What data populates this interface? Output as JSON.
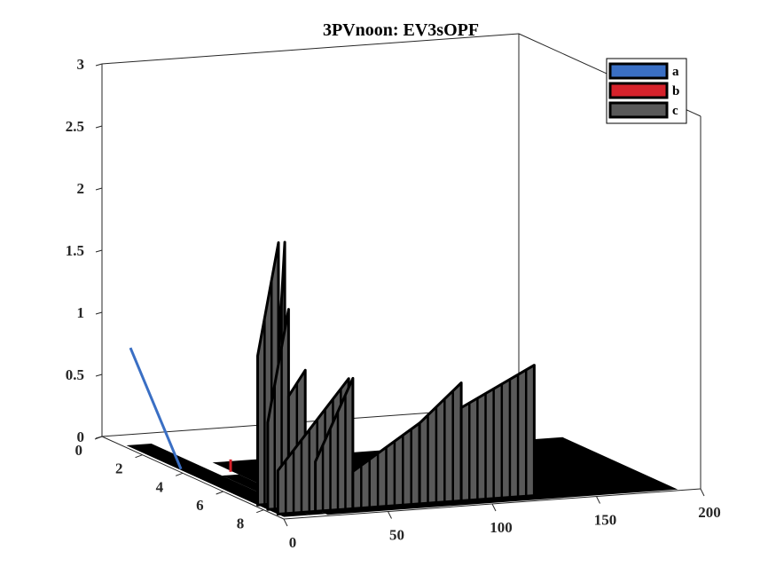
{
  "chart_data": {
    "type": "bar3d",
    "title": "3PVnoon: EV3sOPF",
    "xlabel": "",
    "ylabel": "",
    "zlabel": "",
    "x_ticks": [
      "0",
      "50",
      "100",
      "150",
      "200"
    ],
    "y_ticks": [
      "0",
      "2",
      "4",
      "6",
      "8"
    ],
    "z_ticks": [
      "0",
      "0.5",
      "1",
      "1.5",
      "2",
      "2.5",
      "3"
    ],
    "xlim": [
      0,
      200
    ],
    "ylim": [
      0,
      9
    ],
    "zlim": [
      0,
      3
    ],
    "legend_position": "top-right",
    "legend": [
      {
        "label": "a",
        "color": "#3a6fc4"
      },
      {
        "label": "b",
        "color": "#d6222b"
      },
      {
        "label": "c",
        "color": "#595959"
      }
    ],
    "walls": [
      {
        "y": 7.5,
        "x_start": 2,
        "x_end": 12,
        "z_start": 1.2,
        "z_end": 2.1
      },
      {
        "y": 7.5,
        "x_start": 12,
        "x_end": 15,
        "z_start": 1.2,
        "z_end": 2.1
      },
      {
        "y": 8.0,
        "x_start": 2,
        "x_end": 12,
        "z_start": 0.7,
        "z_end": 1.6
      },
      {
        "y": 8.0,
        "x_start": 12,
        "x_end": 20,
        "z_start": 0.9,
        "z_end": 1.1
      },
      {
        "y": 8.5,
        "x_start": 2,
        "x_end": 36,
        "z_start": 0.35,
        "z_end": 1.05
      },
      {
        "y": 8.5,
        "x_start": 20,
        "x_end": 38,
        "z_start": 0.4,
        "z_end": 1.05
      },
      {
        "y": 8.5,
        "x_start": 38,
        "x_end": 70,
        "z_start": 0.3,
        "z_end": 0.65
      },
      {
        "y": 8.5,
        "x_start": 70,
        "x_end": 90,
        "z_start": 0.65,
        "z_end": 0.95
      },
      {
        "y": 8.5,
        "x_start": 90,
        "x_end": 125,
        "z_start": 0.75,
        "z_end": 1.05
      }
    ],
    "phase_a_value": 0.8,
    "phase_b_value": 0.1
  }
}
